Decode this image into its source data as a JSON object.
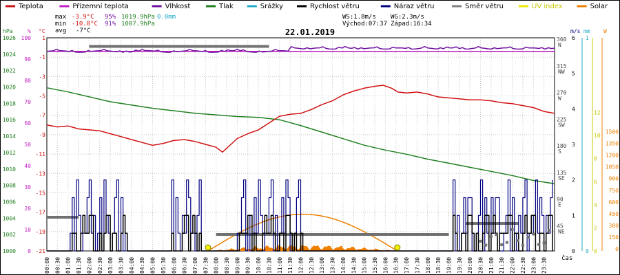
{
  "chart_data": {
    "type": "line",
    "title": "22.01.2019",
    "legend": [
      {
        "label": "Teplota",
        "color": "#d01010"
      },
      {
        "label": "Přízemní teplota",
        "color": "#c020c0"
      },
      {
        "label": "Vlhkost",
        "color": "#7010a0"
      },
      {
        "label": "Tlak",
        "color": "#208020"
      },
      {
        "label": "Srážky",
        "color": "#20a8c8"
      },
      {
        "label": "Rychlost větru",
        "color": "#000000"
      },
      {
        "label": "Náraz větru",
        "color": "#000080"
      },
      {
        "label": "Směr větru",
        "color": "#808080"
      },
      {
        "label": "UV index",
        "color": "#e8e800"
      },
      {
        "label": "Solar",
        "color": "#f08000"
      }
    ],
    "stats": {
      "max_label": "max",
      "max_temp": "-3.9°C",
      "max_hum": "95%",
      "max_press": "1019.9hPa",
      "rain": "0.0mm",
      "min_label": "min",
      "min_temp": "-10.8°C",
      "min_hum": "91%",
      "min_press": "1007.9hPa",
      "avg_label": "avg",
      "avg_temp": "-7°C",
      "ws": "WS:1.8m/s",
      "wg": "WG:2.3m/s",
      "sunrise": "Východ:07:37",
      "sunset": "Západ:16:34"
    },
    "axes": {
      "hpa_unit": "hPa",
      "hpa_ticks": [
        1026,
        1024,
        1022,
        1020,
        1018,
        1016,
        1014,
        1012,
        1010,
        1008,
        1006,
        1004,
        1002,
        1000
      ],
      "pct_unit": "%",
      "pct_ticks": [
        100,
        90,
        80,
        70,
        60,
        50,
        40,
        30,
        20,
        10,
        0
      ],
      "temp_unit": "°C",
      "temp_ticks": [
        1,
        -1,
        -3,
        -5,
        -7,
        -9,
        -11,
        -13,
        -15,
        -17,
        -19,
        -21
      ],
      "dir_ticks": [
        {
          "deg": "360",
          "lbl": "N"
        },
        {
          "deg": "315",
          "lbl": "NW"
        },
        {
          "deg": "270",
          "lbl": "W"
        },
        {
          "deg": "225",
          "lbl": "SW"
        },
        {
          "deg": "180",
          "lbl": "S"
        },
        {
          "deg": "135",
          "lbl": "SE"
        },
        {
          "deg": "90",
          "lbl": "E"
        },
        {
          "deg": "45",
          "lbl": "NE"
        }
      ],
      "ms_unit": "m/s",
      "ms_ticks": [
        6,
        5,
        4,
        3,
        2,
        1,
        0
      ],
      "mm_unit": "mm",
      "mm_ticks": [
        1,
        0
      ],
      "uv_unit": "UV",
      "uv_ticks": [
        12,
        10,
        8,
        6,
        4,
        2,
        0
      ],
      "w_unit": "W",
      "w_ticks": [
        1500,
        1350,
        1200,
        1050,
        900,
        750,
        600,
        450,
        300,
        150,
        0
      ],
      "x_ticks": [
        "00:00",
        "00:30",
        "01:00",
        "01:30",
        "02:00",
        "02:30",
        "03:00",
        "03:30",
        "04:00",
        "04:30",
        "05:00",
        "05:30",
        "06:00",
        "06:30",
        "07:00",
        "07:30",
        "08:00",
        "08:30",
        "09:00",
        "09:30",
        "10:00",
        "10:30",
        "11:00",
        "11:30",
        "12:00",
        "12:30",
        "13:00",
        "13:30",
        "14:00",
        "14:30",
        "15:00",
        "15:30",
        "16:00",
        "16:30",
        "17:00",
        "17:30",
        "18:00",
        "18:30",
        "19:00",
        "19:30",
        "20:00",
        "20:30",
        "21:00",
        "21:30",
        "22:00",
        "22:30",
        "23:00",
        "23:30"
      ],
      "x_unit": "čas"
    },
    "series": {
      "temperature": [
        [
          0,
          -8.0
        ],
        [
          0.5,
          -8.2
        ],
        [
          1,
          -8.1
        ],
        [
          1.5,
          -8.4
        ],
        [
          2,
          -8.5
        ],
        [
          2.5,
          -8.6
        ],
        [
          3,
          -8.9
        ],
        [
          3.5,
          -9.2
        ],
        [
          4,
          -9.5
        ],
        [
          4.5,
          -9.8
        ],
        [
          5,
          -10.1
        ],
        [
          5.5,
          -9.9
        ],
        [
          6,
          -9.6
        ],
        [
          6.5,
          -9.5
        ],
        [
          7,
          -9.7
        ],
        [
          7.5,
          -10.0
        ],
        [
          8,
          -10.3
        ],
        [
          8.3,
          -10.8
        ],
        [
          8.7,
          -10.0
        ],
        [
          9,
          -9.4
        ],
        [
          9.5,
          -8.9
        ],
        [
          10,
          -8.5
        ],
        [
          10.5,
          -7.8
        ],
        [
          11,
          -7.1
        ],
        [
          11.5,
          -6.9
        ],
        [
          12,
          -6.8
        ],
        [
          12.5,
          -6.4
        ],
        [
          13,
          -5.9
        ],
        [
          13.5,
          -5.5
        ],
        [
          14,
          -4.9
        ],
        [
          14.5,
          -4.5
        ],
        [
          15,
          -4.2
        ],
        [
          15.5,
          -4.0
        ],
        [
          15.9,
          -3.9
        ],
        [
          16.3,
          -4.2
        ],
        [
          16.6,
          -4.6
        ],
        [
          17,
          -4.7
        ],
        [
          17.5,
          -4.6
        ],
        [
          18,
          -4.8
        ],
        [
          18.5,
          -5.1
        ],
        [
          19,
          -5.2
        ],
        [
          19.5,
          -5.3
        ],
        [
          20,
          -5.4
        ],
        [
          20.5,
          -5.4
        ],
        [
          21,
          -5.5
        ],
        [
          21.5,
          -5.7
        ],
        [
          22,
          -5.8
        ],
        [
          22.5,
          -6.0
        ],
        [
          23,
          -6.2
        ],
        [
          23.5,
          -6.6
        ],
        [
          24,
          -6.8
        ]
      ],
      "pressure": [
        [
          0,
          1019.9
        ],
        [
          1,
          1019.4
        ],
        [
          2,
          1018.8
        ],
        [
          3,
          1018.2
        ],
        [
          4,
          1017.8
        ],
        [
          5,
          1017.4
        ],
        [
          6,
          1017.1
        ],
        [
          7,
          1016.8
        ],
        [
          8,
          1016.6
        ],
        [
          9,
          1016.4
        ],
        [
          10,
          1016.3
        ],
        [
          11,
          1016.0
        ],
        [
          12,
          1015.3
        ],
        [
          13,
          1014.5
        ],
        [
          14,
          1013.7
        ],
        [
          15,
          1012.9
        ],
        [
          16,
          1012.3
        ],
        [
          17,
          1011.8
        ],
        [
          18,
          1011.2
        ],
        [
          19,
          1010.7
        ],
        [
          20,
          1010.2
        ],
        [
          21,
          1009.7
        ],
        [
          22,
          1009.2
        ],
        [
          23,
          1008.6
        ],
        [
          24,
          1008.2
        ]
      ],
      "humidity": [
        [
          0,
          93
        ],
        [
          1,
          93
        ],
        [
          2,
          94
        ],
        [
          3,
          93
        ],
        [
          4,
          94
        ],
        [
          5,
          94
        ],
        [
          6,
          94
        ],
        [
          7,
          94
        ],
        [
          8,
          94
        ],
        [
          9,
          94
        ],
        [
          10,
          94
        ],
        [
          11,
          94
        ],
        [
          12,
          95
        ],
        [
          13,
          95
        ],
        [
          14,
          95
        ],
        [
          15,
          95
        ],
        [
          16,
          95
        ],
        [
          17,
          95
        ],
        [
          18,
          95
        ],
        [
          19,
          95
        ],
        [
          20,
          95
        ],
        [
          21,
          95
        ],
        [
          22,
          95
        ],
        [
          23,
          95
        ],
        [
          24,
          95
        ]
      ],
      "ground_temp": [
        [
          0,
          -0.4
        ],
        [
          24,
          -0.4
        ]
      ],
      "wind_speed_avg": [
        [
          0,
          1.0
        ],
        [
          24,
          1.0
        ]
      ],
      "solar_arc": {
        "rise_h": 7.62,
        "set_h": 16.57,
        "peak_wm2": 470
      },
      "uv_markers": [
        {
          "h": 7.62,
          "uv": 0
        },
        {
          "h": 16.57,
          "uv": 0
        }
      ],
      "wind_dir_avg": {
        "from_h": 0,
        "to_h": 10.5,
        "deg": 350
      }
    }
  }
}
